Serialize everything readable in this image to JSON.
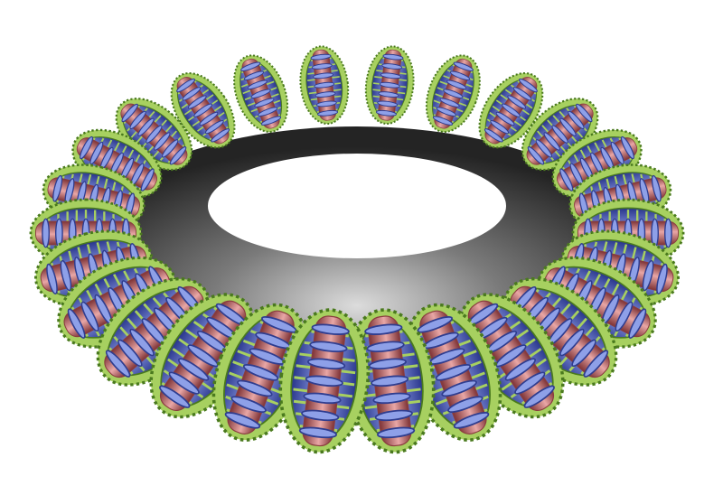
{
  "scene": {
    "subject": "fractal torus",
    "colors": {
      "background": "#ffffff",
      "core_dark": "#2b2b2b",
      "core_mid": "#5c5c5c",
      "core_light": "#d8d8d8",
      "ring_red_dark": "#8a3c3e",
      "ring_red_mid": "#c96d6f",
      "ring_red_light": "#f2c2c0",
      "ring_blue_dark": "#2f3d8f",
      "ring_blue_light": "#8ea0e8",
      "ring_green_dark": "#4a7a1e",
      "ring_green_light": "#a7d060"
    }
  }
}
